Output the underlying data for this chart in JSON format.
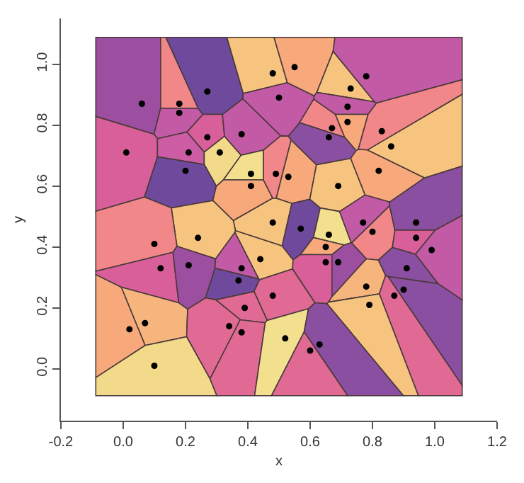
{
  "chart_data": {
    "type": "scatter",
    "xlabel": "x",
    "ylabel": "y",
    "xlim": [
      -0.2,
      1.2
    ],
    "ylim": [
      -0.17,
      1.15
    ],
    "xticks": [
      {
        "value": -0.2,
        "label": "-0.2"
      },
      {
        "value": 0,
        "label": "0.0"
      },
      {
        "value": 0.2,
        "label": "0.2"
      },
      {
        "value": 0.4,
        "label": "0.4"
      },
      {
        "value": 0.6,
        "label": "0.6"
      },
      {
        "value": 0.8,
        "label": "0.8"
      },
      {
        "value": 1,
        "label": "1.0"
      },
      {
        "value": 1.2,
        "label": "1.2"
      }
    ],
    "yticks": [
      {
        "value": 0,
        "label": "0.0"
      },
      {
        "value": 0.2,
        "label": "0.2"
      },
      {
        "value": 0.4,
        "label": "0.4"
      },
      {
        "value": 0.6,
        "label": "0.6"
      },
      {
        "value": 0.8,
        "label": "0.8"
      },
      {
        "value": 1,
        "label": "1.0"
      }
    ],
    "grid": false,
    "marker": "circle",
    "series": [
      {
        "color": "#000000",
        "x": [
          0.06,
          0.18,
          0.18,
          0.27,
          0.48,
          0.5,
          0.01,
          0.27,
          0.21,
          0.31,
          0.38,
          0.2,
          0.41,
          0.41,
          0.49,
          0.53,
          0.55,
          0.78,
          0.73,
          0.72,
          0.67,
          0.72,
          0.66,
          0.83,
          0.86,
          0.82,
          0.69,
          0.48,
          0.24,
          0.1,
          0.44,
          0.12,
          0.21,
          0.38,
          0.37,
          0.48,
          0.39,
          0.07,
          0.02,
          0.34,
          0.38,
          0.52,
          0.1,
          0.57,
          0.66,
          0.77,
          0.8,
          0.94,
          0.94,
          0.99,
          0.65,
          0.65,
          0.69,
          0.91,
          0.78,
          0.9,
          0.87,
          0.79,
          0.63,
          0.6
        ],
        "values": [
          0.87,
          0.87,
          0.84,
          0.91,
          0.97,
          0.89,
          0.71,
          0.76,
          0.71,
          0.71,
          0.77,
          0.65,
          0.64,
          0.6,
          0.64,
          0.63,
          0.99,
          0.96,
          0.92,
          0.86,
          0.79,
          0.81,
          0.76,
          0.78,
          0.73,
          0.65,
          0.6,
          0.48,
          0.43,
          0.41,
          0.36,
          0.33,
          0.34,
          0.33,
          0.29,
          0.24,
          0.2,
          0.15,
          0.13,
          0.14,
          0.12,
          0.1,
          0.01,
          0.46,
          0.44,
          0.48,
          0.45,
          0.48,
          0.43,
          0.39,
          0.4,
          0.35,
          0.35,
          0.33,
          0.27,
          0.26,
          0.24,
          0.21,
          0.08,
          0.06
        ]
      }
    ]
  }
}
